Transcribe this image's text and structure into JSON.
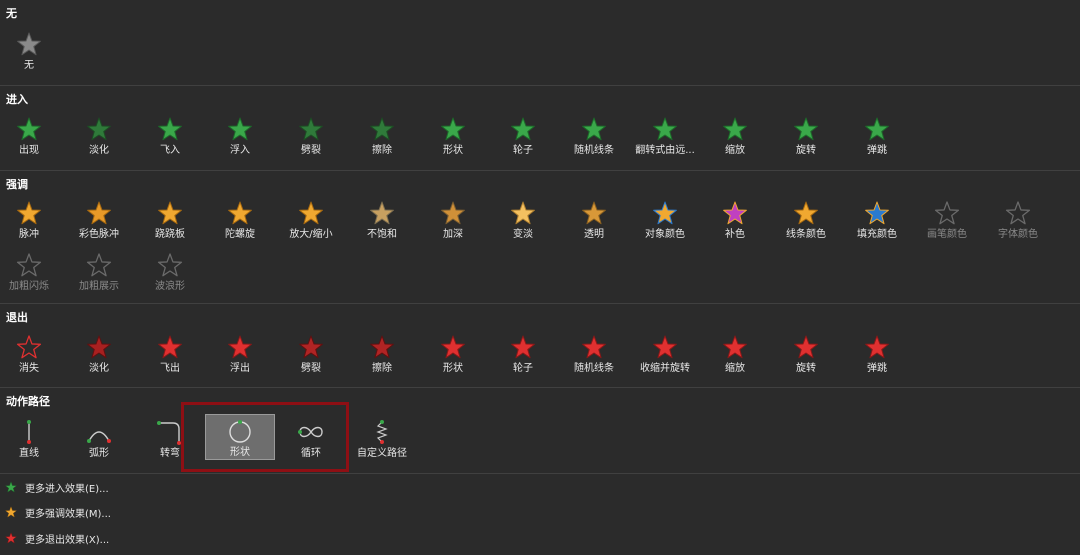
{
  "sections": {
    "none": {
      "title": "无",
      "items": [
        {
          "label": "无",
          "icon": "star-gray-icon"
        }
      ]
    },
    "entrance": {
      "title": "进入",
      "items": [
        {
          "label": "出现",
          "icon": "star-green-icon"
        },
        {
          "label": "淡化",
          "icon": "star-green-fade-icon"
        },
        {
          "label": "飞入",
          "icon": "star-green-fly-icon"
        },
        {
          "label": "浮入",
          "icon": "star-green-float-icon"
        },
        {
          "label": "劈裂",
          "icon": "star-green-split-icon"
        },
        {
          "label": "擦除",
          "icon": "star-green-wipe-icon"
        },
        {
          "label": "形状",
          "icon": "star-green-shape-icon"
        },
        {
          "label": "轮子",
          "icon": "star-green-wheel-icon"
        },
        {
          "label": "随机线条",
          "icon": "star-green-lines-icon"
        },
        {
          "label": "翻转式由远...",
          "icon": "star-green-flip-icon"
        },
        {
          "label": "缩放",
          "icon": "star-green-zoom-icon"
        },
        {
          "label": "旋转",
          "icon": "star-green-spin-icon"
        },
        {
          "label": "弹跳",
          "icon": "star-green-bounce-icon"
        }
      ]
    },
    "emphasis": {
      "title": "强调",
      "items": [
        {
          "label": "脉冲",
          "icon": "star-gold-pulse-icon"
        },
        {
          "label": "彩色脉冲",
          "icon": "star-gold-color-pulse-icon"
        },
        {
          "label": "跷跷板",
          "icon": "star-gold-teeter-icon"
        },
        {
          "label": "陀螺旋",
          "icon": "star-gold-spin-icon"
        },
        {
          "label": "放大/缩小",
          "icon": "star-gold-grow-shrink-icon"
        },
        {
          "label": "不饱和",
          "icon": "star-gold-desaturate-icon"
        },
        {
          "label": "加深",
          "icon": "star-gold-darken-icon"
        },
        {
          "label": "变淡",
          "icon": "star-gold-lighten-icon"
        },
        {
          "label": "透明",
          "icon": "star-gold-transparency-icon"
        },
        {
          "label": "对象颜色",
          "icon": "star-gold-object-color-icon"
        },
        {
          "label": "补色",
          "icon": "star-gold-complementary-icon"
        },
        {
          "label": "线条颜色",
          "icon": "star-gold-line-color-icon"
        },
        {
          "label": "填充颜色",
          "icon": "star-gold-fill-color-icon"
        },
        {
          "label": "画笔颜色",
          "icon": "star-outline-brush-color-icon",
          "disabled": true
        },
        {
          "label": "字体颜色",
          "icon": "star-outline-font-color-icon",
          "disabled": true
        },
        {
          "label": "加粗闪烁",
          "icon": "star-outline-bold-flash-icon",
          "disabled": true
        },
        {
          "label": "加粗展示",
          "icon": "star-outline-bold-reveal-icon",
          "disabled": true
        },
        {
          "label": "波浪形",
          "icon": "star-outline-wave-icon",
          "disabled": true
        }
      ]
    },
    "exit": {
      "title": "退出",
      "items": [
        {
          "label": "消失",
          "icon": "star-red-disappear-icon"
        },
        {
          "label": "淡化",
          "icon": "star-red-fade-icon"
        },
        {
          "label": "飞出",
          "icon": "star-red-fly-out-icon"
        },
        {
          "label": "浮出",
          "icon": "star-red-float-out-icon"
        },
        {
          "label": "劈裂",
          "icon": "star-red-split-icon"
        },
        {
          "label": "擦除",
          "icon": "star-red-wipe-icon"
        },
        {
          "label": "形状",
          "icon": "star-red-shape-icon"
        },
        {
          "label": "轮子",
          "icon": "star-red-wheel-icon"
        },
        {
          "label": "随机线条",
          "icon": "star-red-lines-icon"
        },
        {
          "label": "收缩并旋转",
          "icon": "star-red-shrink-turn-icon"
        },
        {
          "label": "缩放",
          "icon": "star-red-zoom-icon"
        },
        {
          "label": "旋转",
          "icon": "star-red-spin-icon"
        },
        {
          "label": "弹跳",
          "icon": "star-red-bounce-icon"
        }
      ]
    },
    "motion": {
      "title": "动作路径",
      "items": [
        {
          "label": "直线",
          "icon": "path-line-icon"
        },
        {
          "label": "弧形",
          "icon": "path-arc-icon"
        },
        {
          "label": "转弯",
          "icon": "path-turn-icon"
        },
        {
          "label": "形状",
          "icon": "path-shape-circle-icon",
          "selected": true
        },
        {
          "label": "循环",
          "icon": "path-loop-icon"
        },
        {
          "label": "自定义路径",
          "icon": "path-custom-icon"
        }
      ]
    }
  },
  "more_links": [
    {
      "label": "更多进入效果(E)...",
      "icon": "star-green-icon"
    },
    {
      "label": "更多强调效果(M)...",
      "icon": "star-gold-icon"
    },
    {
      "label": "更多退出效果(X)...",
      "icon": "star-red-icon"
    }
  ],
  "colors": {
    "background": "#2b2b2b",
    "green": "#3aa84a",
    "gold": "#f0a830",
    "red": "#e03030",
    "gray": "#8a8a8a",
    "highlight_border": "#8e0f14",
    "selected_bg": "#6e6e6e"
  }
}
